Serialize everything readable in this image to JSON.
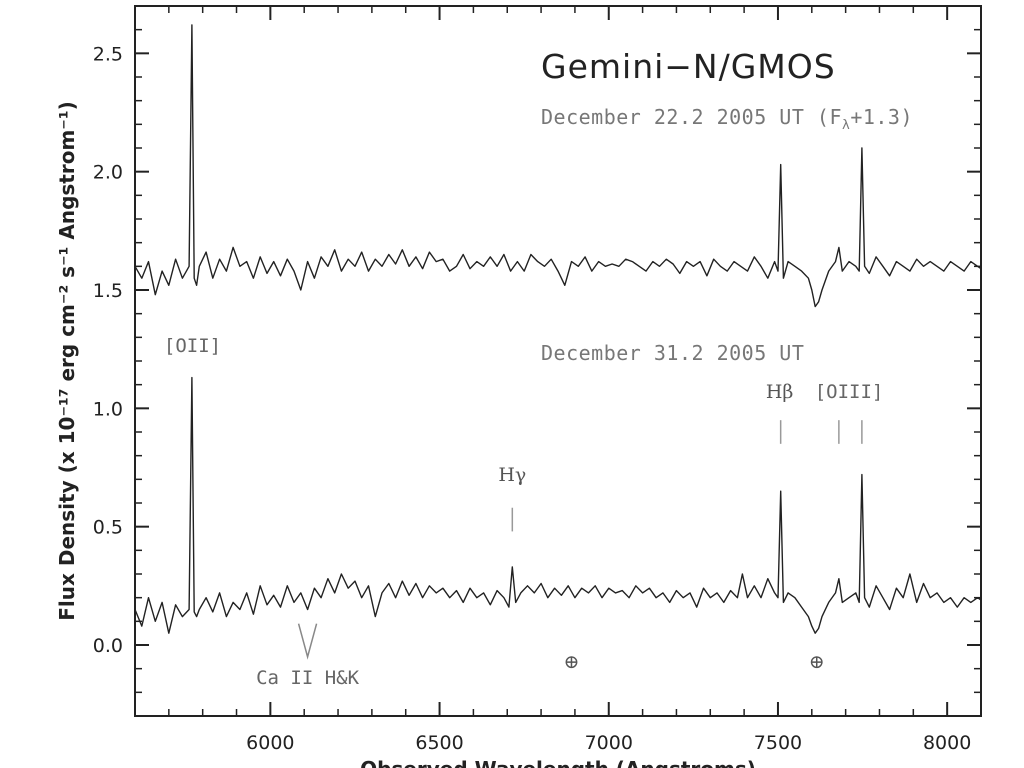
{
  "chart_data": {
    "type": "line",
    "title": "Gemini−N/GMOS",
    "xlabel": "Observed Wavelength (Angstroms)",
    "ylabel": "Flux Density (x 10⁻¹⁷ erg cm⁻² s⁻¹ Angstrom⁻¹)",
    "xlim": [
      5600,
      8100
    ],
    "ylim": [
      -0.3,
      2.7
    ],
    "x_ticks": [
      6000,
      6500,
      7000,
      7500,
      8000
    ],
    "x_tick_labels": [
      "6000",
      "6500",
      "7000",
      "7500",
      "8000"
    ],
    "y_ticks": [
      0.0,
      0.5,
      1.0,
      1.5,
      2.0,
      2.5
    ],
    "y_tick_labels": [
      "0.0",
      "0.5",
      "1.0",
      "1.5",
      "2.0",
      "2.5"
    ],
    "series": [
      {
        "name": "December 22.2 2005 UT (Fλ+1.3)",
        "x": [
          5600,
          5620,
          5640,
          5660,
          5680,
          5700,
          5720,
          5740,
          5760,
          5768,
          5775,
          5782,
          5790,
          5810,
          5830,
          5850,
          5870,
          5890,
          5910,
          5930,
          5950,
          5970,
          5990,
          6010,
          6030,
          6050,
          6070,
          6090,
          6110,
          6130,
          6150,
          6170,
          6190,
          6210,
          6230,
          6250,
          6270,
          6290,
          6310,
          6330,
          6350,
          6370,
          6390,
          6410,
          6430,
          6450,
          6470,
          6490,
          6510,
          6530,
          6550,
          6570,
          6590,
          6610,
          6630,
          6650,
          6670,
          6690,
          6710,
          6730,
          6750,
          6770,
          6790,
          6810,
          6830,
          6850,
          6870,
          6890,
          6910,
          6930,
          6950,
          6970,
          6990,
          7010,
          7030,
          7050,
          7070,
          7090,
          7110,
          7130,
          7150,
          7170,
          7190,
          7210,
          7230,
          7250,
          7270,
          7290,
          7310,
          7330,
          7350,
          7370,
          7390,
          7410,
          7430,
          7450,
          7470,
          7490,
          7500,
          7508,
          7516,
          7530,
          7550,
          7570,
          7590,
          7600,
          7610,
          7620,
          7630,
          7650,
          7670,
          7680,
          7690,
          7710,
          7730,
          7740,
          7748,
          7756,
          7770,
          7790,
          7810,
          7830,
          7850,
          7870,
          7890,
          7910,
          7930,
          7950,
          7970,
          7990,
          8010,
          8030,
          8050,
          8070,
          8090,
          8100
        ],
        "values": [
          1.6,
          1.55,
          1.62,
          1.48,
          1.58,
          1.52,
          1.63,
          1.55,
          1.6,
          2.62,
          1.55,
          1.52,
          1.6,
          1.66,
          1.55,
          1.63,
          1.58,
          1.68,
          1.6,
          1.62,
          1.55,
          1.64,
          1.57,
          1.62,
          1.56,
          1.63,
          1.58,
          1.5,
          1.62,
          1.55,
          1.64,
          1.6,
          1.67,
          1.58,
          1.63,
          1.6,
          1.66,
          1.58,
          1.63,
          1.6,
          1.65,
          1.61,
          1.67,
          1.6,
          1.64,
          1.59,
          1.66,
          1.62,
          1.63,
          1.58,
          1.6,
          1.65,
          1.59,
          1.62,
          1.6,
          1.64,
          1.6,
          1.65,
          1.58,
          1.62,
          1.58,
          1.65,
          1.62,
          1.6,
          1.63,
          1.58,
          1.52,
          1.62,
          1.6,
          1.64,
          1.58,
          1.62,
          1.6,
          1.61,
          1.6,
          1.63,
          1.62,
          1.6,
          1.58,
          1.62,
          1.6,
          1.63,
          1.61,
          1.57,
          1.62,
          1.6,
          1.62,
          1.56,
          1.63,
          1.6,
          1.58,
          1.62,
          1.6,
          1.58,
          1.64,
          1.6,
          1.55,
          1.62,
          1.58,
          2.03,
          1.55,
          1.62,
          1.6,
          1.58,
          1.55,
          1.5,
          1.43,
          1.45,
          1.5,
          1.58,
          1.62,
          1.68,
          1.58,
          1.62,
          1.6,
          1.58,
          2.1,
          1.6,
          1.57,
          1.64,
          1.6,
          1.56,
          1.62,
          1.6,
          1.58,
          1.63,
          1.6,
          1.62,
          1.6,
          1.58,
          1.62,
          1.6,
          1.58,
          1.62,
          1.6,
          1.59
        ]
      },
      {
        "name": "December 31.2 2005 UT",
        "x": [
          5600,
          5620,
          5640,
          5660,
          5680,
          5700,
          5720,
          5740,
          5760,
          5768,
          5775,
          5782,
          5790,
          5810,
          5830,
          5850,
          5870,
          5890,
          5910,
          5930,
          5950,
          5970,
          5990,
          6010,
          6030,
          6050,
          6070,
          6090,
          6110,
          6130,
          6150,
          6170,
          6190,
          6210,
          6230,
          6250,
          6270,
          6290,
          6310,
          6330,
          6350,
          6370,
          6390,
          6410,
          6430,
          6450,
          6470,
          6490,
          6510,
          6530,
          6550,
          6570,
          6590,
          6610,
          6630,
          6650,
          6670,
          6690,
          6705,
          6715,
          6725,
          6740,
          6760,
          6780,
          6800,
          6820,
          6840,
          6860,
          6880,
          6900,
          6920,
          6940,
          6960,
          6980,
          7000,
          7020,
          7040,
          7060,
          7080,
          7100,
          7120,
          7140,
          7160,
          7180,
          7200,
          7220,
          7240,
          7260,
          7280,
          7300,
          7320,
          7340,
          7360,
          7380,
          7395,
          7410,
          7430,
          7450,
          7470,
          7490,
          7500,
          7508,
          7516,
          7530,
          7550,
          7570,
          7590,
          7600,
          7610,
          7620,
          7630,
          7650,
          7670,
          7680,
          7690,
          7710,
          7730,
          7740,
          7748,
          7756,
          7770,
          7790,
          7810,
          7830,
          7850,
          7870,
          7890,
          7910,
          7930,
          7950,
          7970,
          7990,
          8010,
          8030,
          8050,
          8070,
          8090,
          8100
        ],
        "values": [
          0.15,
          0.08,
          0.2,
          0.1,
          0.18,
          0.05,
          0.17,
          0.12,
          0.15,
          1.13,
          0.14,
          0.12,
          0.15,
          0.2,
          0.14,
          0.22,
          0.12,
          0.18,
          0.15,
          0.22,
          0.13,
          0.25,
          0.17,
          0.21,
          0.16,
          0.25,
          0.18,
          0.22,
          0.15,
          0.24,
          0.2,
          0.28,
          0.22,
          0.3,
          0.24,
          0.27,
          0.2,
          0.25,
          0.12,
          0.22,
          0.26,
          0.2,
          0.27,
          0.21,
          0.26,
          0.2,
          0.25,
          0.22,
          0.24,
          0.2,
          0.23,
          0.18,
          0.24,
          0.2,
          0.22,
          0.17,
          0.23,
          0.2,
          0.16,
          0.33,
          0.18,
          0.22,
          0.25,
          0.22,
          0.26,
          0.2,
          0.24,
          0.21,
          0.25,
          0.2,
          0.24,
          0.22,
          0.25,
          0.2,
          0.24,
          0.22,
          0.23,
          0.2,
          0.25,
          0.22,
          0.24,
          0.2,
          0.22,
          0.18,
          0.23,
          0.2,
          0.22,
          0.16,
          0.24,
          0.2,
          0.22,
          0.18,
          0.23,
          0.2,
          0.3,
          0.2,
          0.25,
          0.2,
          0.28,
          0.22,
          0.2,
          0.65,
          0.18,
          0.22,
          0.2,
          0.16,
          0.12,
          0.08,
          0.05,
          0.07,
          0.12,
          0.18,
          0.22,
          0.28,
          0.18,
          0.2,
          0.22,
          0.18,
          0.72,
          0.2,
          0.16,
          0.25,
          0.2,
          0.15,
          0.24,
          0.2,
          0.3,
          0.18,
          0.26,
          0.2,
          0.22,
          0.18,
          0.2,
          0.16,
          0.2,
          0.18,
          0.2,
          0.19
        ]
      }
    ],
    "annotations": {
      "title_big": "Gemini−N/GMOS",
      "date_top_text": "December 22.2 2005 UT (F",
      "date_top_sub": "λ",
      "date_top_suffix": "+1.3)",
      "date_bottom": "December 31.2 2005 UT",
      "oii": "[OII]",
      "hbeta": "Hβ",
      "oiii": "[OIII]",
      "hgamma": "Hγ",
      "cahk": "Ca II H&K",
      "telluric_1": "⊕",
      "telluric_2": "⊕"
    },
    "line_markers": {
      "hbeta_wavelength": 7508,
      "oiii_wavelengths": [
        7680,
        7748
      ],
      "hgamma_wavelength": 6715,
      "cahk_wavelength": 6110,
      "telluric_wavelengths": [
        6890,
        7615
      ]
    }
  }
}
